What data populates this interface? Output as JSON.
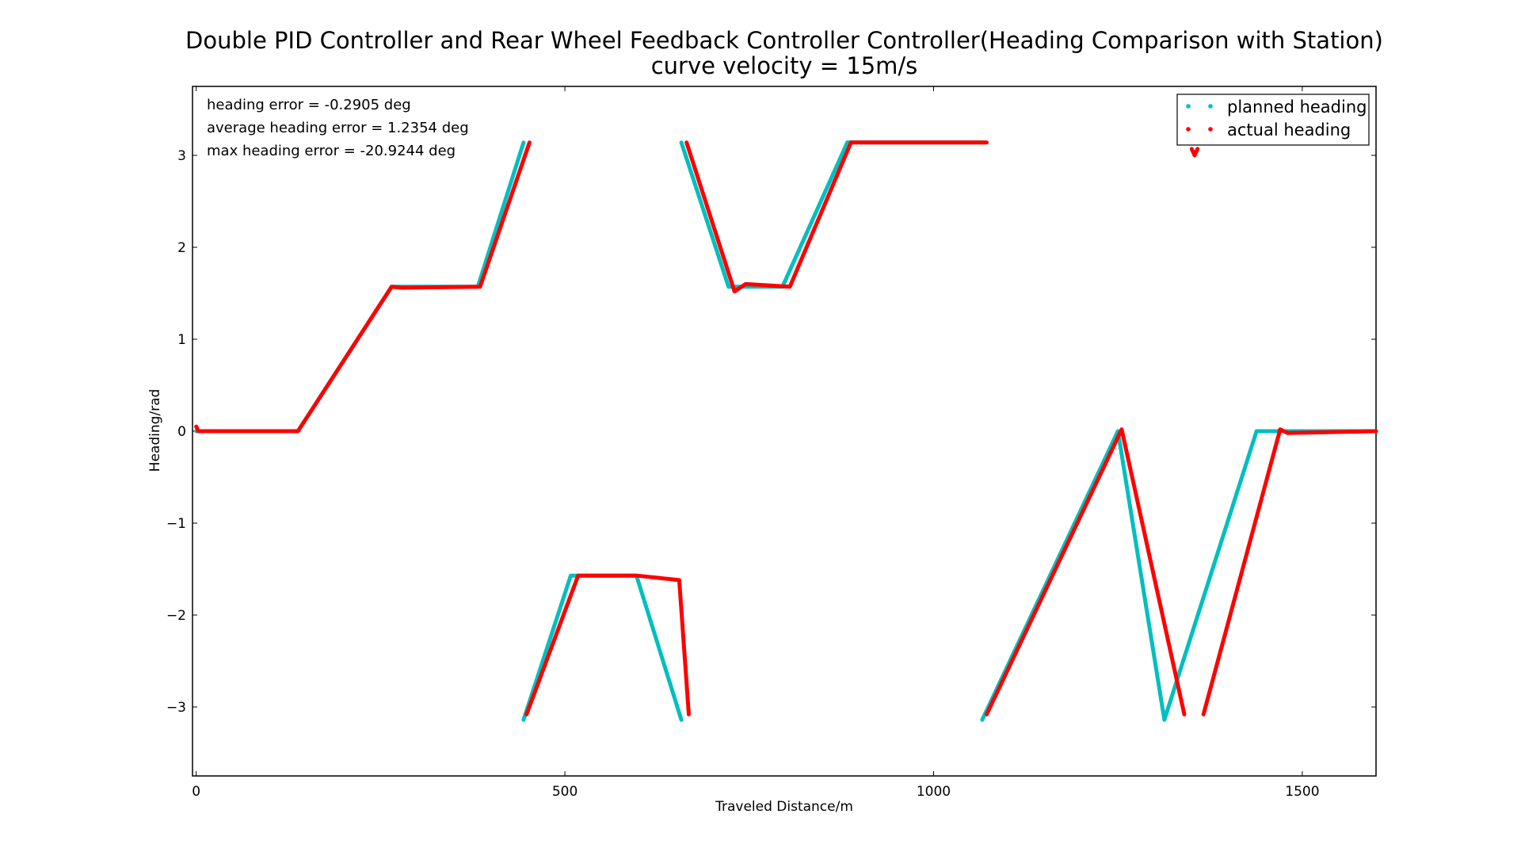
{
  "chart_data": {
    "type": "scatter",
    "title": "Double PID Controller and Rear Wheel Feedback Controller Controller(Heading Comparison with Station)",
    "subtitle": "curve velocity = 15m/s",
    "xlabel": "Traveled Distance/m",
    "ylabel": "Heading/rad",
    "xlim": [
      -5,
      1600
    ],
    "ylim": [
      -3.75,
      3.75
    ],
    "xticks": [
      0,
      500,
      1000,
      1500
    ],
    "xtick_labels": [
      "0",
      "500",
      "1000",
      "1500"
    ],
    "yticks": [
      -3,
      -2,
      -1,
      0,
      1,
      2,
      3
    ],
    "ytick_labels": [
      "−3",
      "−2",
      "−1",
      "0",
      "1",
      "2",
      "3"
    ],
    "grid": false,
    "legend_position": "top-right",
    "annotations": [
      "heading error = -0.2905 deg",
      "average heading error = 1.2354 deg",
      "max heading error = -20.9244 deg"
    ],
    "series": [
      {
        "name": "planned heading",
        "color": "#00bfbf",
        "segments": [
          [
            [
              0,
              0
            ],
            [
              138,
              0
            ],
            [
              265,
              1.5708
            ],
            [
              382,
              1.5708
            ],
            [
              444,
              3.14
            ]
          ],
          [
            [
              444,
              -3.14
            ],
            [
              508,
              -1.5708
            ],
            [
              597,
              -1.5708
            ],
            [
              658,
              -3.14
            ]
          ],
          [
            [
              658,
              3.14
            ],
            [
              722,
              1.5708
            ],
            [
              795,
              1.5708
            ],
            [
              883,
              3.14
            ]
          ],
          [
            [
              883,
              3.14
            ],
            [
              1070,
              3.14
            ]
          ],
          [
            [
              1066,
              -3.14
            ],
            [
              1250,
              0
            ],
            [
              1313,
              -3.14
            ],
            [
              1438,
              0
            ],
            [
              1600,
              0
            ]
          ]
        ]
      },
      {
        "name": "actual heading",
        "color": "#ff0000",
        "segments": [
          [
            [
              0,
              0.05
            ],
            [
              3,
              0
            ],
            [
              138,
              0
            ],
            [
              265,
              1.5708
            ],
            [
              278,
              1.56
            ],
            [
              385,
              1.5708
            ],
            [
              452,
              3.14
            ]
          ],
          [
            [
              448,
              -3.08
            ],
            [
              518,
              -1.5708
            ],
            [
              597,
              -1.5708
            ],
            [
              655,
              -1.62
            ],
            [
              668,
              -3.08
            ]
          ],
          [
            [
              665,
              3.14
            ],
            [
              730,
              1.52
            ],
            [
              745,
              1.6
            ],
            [
              805,
              1.5708
            ],
            [
              888,
              3.14
            ]
          ],
          [
            [
              888,
              3.14
            ],
            [
              1072,
              3.14
            ]
          ],
          [
            [
              1072,
              -3.08
            ],
            [
              1255,
              0.02
            ],
            [
              1340,
              -3.08
            ]
          ],
          [
            [
              1350,
              3.07
            ],
            [
              1354,
              3.0
            ],
            [
              1358,
              3.07
            ]
          ],
          [
            [
              1366,
              -3.08
            ],
            [
              1470,
              0.02
            ],
            [
              1480,
              -0.02
            ],
            [
              1600,
              0
            ]
          ]
        ]
      }
    ]
  }
}
